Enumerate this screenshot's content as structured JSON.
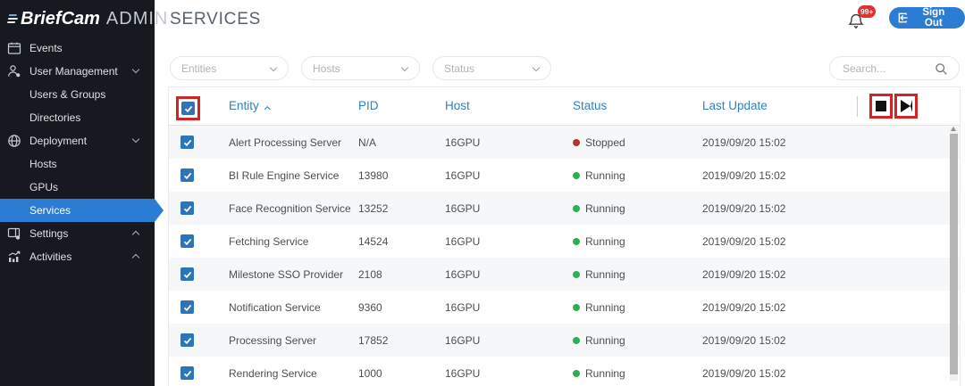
{
  "colors": {
    "accent_blue": "#2b7cd3",
    "table_header_blue": "#3080bf",
    "running_green": "#2eae57",
    "stopped_red": "#b03434",
    "badge_red": "#e03131",
    "annotation_red": "#cf2525",
    "sidebar_bg": "#161a20"
  },
  "sidebar": {
    "brand": "BriefCam",
    "brand_suffix": "ADMIN",
    "items": [
      {
        "label": "Events",
        "icon": "calendar",
        "type": "top"
      },
      {
        "label": "User Management",
        "icon": "user",
        "type": "top",
        "chevron": "down"
      },
      {
        "label": "Users & Groups",
        "type": "sub"
      },
      {
        "label": "Directories",
        "type": "sub"
      },
      {
        "label": "Deployment",
        "icon": "globe",
        "type": "top",
        "chevron": "down"
      },
      {
        "label": "Hosts",
        "type": "sub"
      },
      {
        "label": "GPUs",
        "type": "sub"
      },
      {
        "label": "Services",
        "type": "sub",
        "selected": true
      },
      {
        "label": "Settings",
        "icon": "settings",
        "type": "top",
        "chevron": "up"
      },
      {
        "label": "Activities",
        "icon": "activities",
        "type": "top",
        "chevron": "up"
      }
    ]
  },
  "header": {
    "title": "SERVICES",
    "notification_badge": "99+",
    "sign_out": "Sign Out"
  },
  "filters": {
    "entities": "Entities",
    "hosts": "Hosts",
    "status": "Status",
    "search_placeholder": "Search..."
  },
  "table": {
    "columns": {
      "entity": "Entity",
      "pid": "PID",
      "host": "Host",
      "status": "Status",
      "last_update": "Last Update"
    },
    "sort": {
      "column": "Entity",
      "direction": "ascending"
    },
    "rows": [
      {
        "entity": "Alert Processing Server",
        "pid": "N/A",
        "host": "16GPU",
        "status": "Stopped",
        "last_update": "2019/09/20 15:02"
      },
      {
        "entity": "BI Rule Engine Service",
        "pid": "13980",
        "host": "16GPU",
        "status": "Running",
        "last_update": "2019/09/20 15:02"
      },
      {
        "entity": "Face Recognition Service",
        "pid": "13252",
        "host": "16GPU",
        "status": "Running",
        "last_update": "2019/09/20 15:02"
      },
      {
        "entity": "Fetching Service",
        "pid": "14524",
        "host": "16GPU",
        "status": "Running",
        "last_update": "2019/09/20 15:02"
      },
      {
        "entity": "Milestone SSO Provider",
        "pid": "2108",
        "host": "16GPU",
        "status": "Running",
        "last_update": "2019/09/20 15:02"
      },
      {
        "entity": "Notification Service",
        "pid": "9360",
        "host": "16GPU",
        "status": "Running",
        "last_update": "2019/09/20 15:02"
      },
      {
        "entity": "Processing Server",
        "pid": "17852",
        "host": "16GPU",
        "status": "Running",
        "last_update": "2019/09/20 15:02"
      },
      {
        "entity": "Rendering Service",
        "pid": "1000",
        "host": "16GPU",
        "status": "Running",
        "last_update": "2019/09/20 15:02"
      }
    ]
  }
}
